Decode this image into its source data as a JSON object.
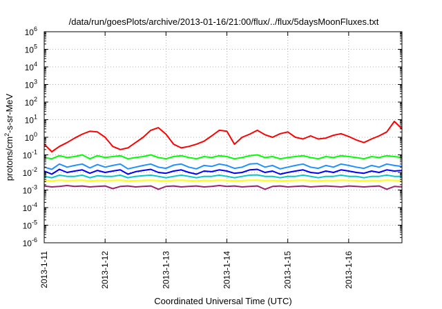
{
  "chart_data": {
    "type": "line",
    "title": "/data/run/goesPlots/archive/2013-01-16/21:00/flux/../flux/5daysMoonFluxes.txt",
    "xlabel": "Coordinated Universal Time (UTC)",
    "ylabel_parts": [
      "protons/cm",
      "2",
      "-s-sr-MeV"
    ],
    "y_scale": "log",
    "ylim": [
      1e-06,
      1000000.0
    ],
    "y_ticks": [
      {
        "base": "10",
        "exp": "-6",
        "value": 1e-06
      },
      {
        "base": "10",
        "exp": "-5",
        "value": 1e-05
      },
      {
        "base": "10",
        "exp": "-4",
        "value": 0.0001
      },
      {
        "base": "10",
        "exp": "-3",
        "value": 0.001
      },
      {
        "base": "10",
        "exp": "-2",
        "value": 0.01
      },
      {
        "base": "10",
        "exp": "-1",
        "value": 0.1
      },
      {
        "base": "10",
        "exp": "0",
        "value": 1
      },
      {
        "base": "10",
        "exp": "1",
        "value": 10
      },
      {
        "base": "10",
        "exp": "2",
        "value": 100
      },
      {
        "base": "10",
        "exp": "3",
        "value": 1000
      },
      {
        "base": "10",
        "exp": "4",
        "value": 10000
      },
      {
        "base": "10",
        "exp": "5",
        "value": 100000
      },
      {
        "base": "10",
        "exp": "6",
        "value": 1000000
      }
    ],
    "x_ticks": [
      "2013-1-11",
      "2013-1-12",
      "2013-1-13",
      "2013-1-14",
      "2013-1-15",
      "2013-1-16"
    ],
    "xlim": [
      "2013-1-11",
      "2013-1-16 21:00"
    ],
    "grid": true,
    "series": [
      {
        "color": "#ff0000",
        "x": [
          "2013-1-11 00:00",
          "2013-1-11 03:00",
          "2013-1-11 06:00",
          "2013-1-11 09:00",
          "2013-1-11 12:00",
          "2013-1-11 15:00",
          "2013-1-11 18:00",
          "2013-1-11 21:00",
          "2013-1-12 00:00",
          "2013-1-12 03:00",
          "2013-1-12 06:00",
          "2013-1-12 09:00",
          "2013-1-12 12:00",
          "2013-1-12 15:00",
          "2013-1-12 18:00",
          "2013-1-12 21:00",
          "2013-1-13 00:00",
          "2013-1-13 03:00",
          "2013-1-13 06:00",
          "2013-1-13 09:00",
          "2013-1-13 12:00",
          "2013-1-13 15:00",
          "2013-1-13 18:00",
          "2013-1-13 21:00",
          "2013-1-14 00:00",
          "2013-1-14 03:00",
          "2013-1-14 06:00",
          "2013-1-14 09:00",
          "2013-1-14 12:00",
          "2013-1-14 15:00",
          "2013-1-14 18:00",
          "2013-1-14 21:00",
          "2013-1-15 00:00",
          "2013-1-15 03:00",
          "2013-1-15 06:00",
          "2013-1-15 09:00",
          "2013-1-15 12:00",
          "2013-1-15 15:00",
          "2013-1-15 18:00",
          "2013-1-15 21:00",
          "2013-1-16 00:00",
          "2013-1-16 03:00",
          "2013-1-16 06:00",
          "2013-1-16 09:00",
          "2013-1-16 12:00",
          "2013-1-16 15:00",
          "2013-1-16 18:00",
          "2013-1-16 21:00"
        ],
        "values": [
          0.4,
          0.15,
          0.3,
          0.5,
          0.9,
          1.5,
          2.2,
          2.0,
          1.0,
          0.3,
          0.2,
          0.25,
          0.5,
          1.0,
          2.5,
          3.5,
          1.5,
          0.4,
          0.25,
          0.3,
          0.4,
          0.6,
          1.2,
          2.5,
          2.2,
          0.4,
          1.0,
          1.5,
          2.5,
          1.4,
          1.0,
          1.6,
          2.0,
          1.0,
          0.8,
          1.2,
          0.8,
          0.9,
          1.3,
          1.6,
          1.1,
          0.7,
          0.5,
          0.8,
          1.2,
          2.0,
          8.0,
          3.0
        ]
      },
      {
        "color": "#00ff00",
        "values": [
          0.07,
          0.06,
          0.09,
          0.07,
          0.08,
          0.1,
          0.06,
          0.09,
          0.07,
          0.08,
          0.09,
          0.06,
          0.07,
          0.08,
          0.1,
          0.07,
          0.06,
          0.08,
          0.09,
          0.07,
          0.06,
          0.08,
          0.07,
          0.09,
          0.08,
          0.06,
          0.07,
          0.09,
          0.1,
          0.07,
          0.08,
          0.06,
          0.07,
          0.08,
          0.09,
          0.07,
          0.06,
          0.08,
          0.07,
          0.09,
          0.08,
          0.07,
          0.06,
          0.08,
          0.07,
          0.09,
          0.08,
          0.07
        ]
      },
      {
        "color": "#1e90ff",
        "values": [
          0.02,
          0.015,
          0.03,
          0.02,
          0.025,
          0.03,
          0.018,
          0.028,
          0.02,
          0.025,
          0.03,
          0.016,
          0.02,
          0.025,
          0.03,
          0.02,
          0.017,
          0.026,
          0.03,
          0.02,
          0.016,
          0.025,
          0.022,
          0.03,
          0.025,
          0.017,
          0.02,
          0.03,
          0.032,
          0.02,
          0.025,
          0.016,
          0.02,
          0.025,
          0.03,
          0.02,
          0.017,
          0.025,
          0.02,
          0.03,
          0.025,
          0.02,
          0.017,
          0.025,
          0.02,
          0.03,
          0.025,
          0.022
        ]
      },
      {
        "color": "#0000ff",
        "values": [
          0.012,
          0.008,
          0.015,
          0.01,
          0.012,
          0.014,
          0.009,
          0.013,
          0.01,
          0.012,
          0.014,
          0.008,
          0.011,
          0.013,
          0.015,
          0.01,
          0.009,
          0.012,
          0.014,
          0.01,
          0.008,
          0.012,
          0.011,
          0.014,
          0.012,
          0.009,
          0.01,
          0.014,
          0.015,
          0.01,
          0.012,
          0.008,
          0.01,
          0.012,
          0.014,
          0.01,
          0.009,
          0.012,
          0.01,
          0.014,
          0.012,
          0.01,
          0.009,
          0.012,
          0.01,
          0.014,
          0.012,
          0.013
        ]
      },
      {
        "color": "#00c8c8",
        "values": [
          0.006,
          0.005,
          0.007,
          0.006,
          0.006,
          0.007,
          0.005,
          0.0065,
          0.006,
          0.006,
          0.007,
          0.005,
          0.006,
          0.0065,
          0.007,
          0.006,
          0.005,
          0.006,
          0.007,
          0.006,
          0.005,
          0.006,
          0.006,
          0.007,
          0.006,
          0.005,
          0.006,
          0.007,
          0.0072,
          0.006,
          0.006,
          0.005,
          0.006,
          0.006,
          0.007,
          0.006,
          0.005,
          0.006,
          0.006,
          0.007,
          0.006,
          0.006,
          0.005,
          0.006,
          0.006,
          0.007,
          0.006,
          0.006
        ]
      },
      {
        "color": "#ffff00",
        "values": [
          0.0035,
          0.0033,
          0.0036,
          0.0034,
          0.0035,
          0.0036,
          0.0033,
          0.0035,
          0.0034,
          0.0035,
          0.0036,
          0.0033,
          0.0034,
          0.0035,
          0.0036,
          0.0034,
          0.0033,
          0.0035,
          0.0036,
          0.0034,
          0.0033,
          0.0035,
          0.0034,
          0.0036,
          0.0035,
          0.0033,
          0.0034,
          0.0036,
          0.0036,
          0.0034,
          0.0035,
          0.0033,
          0.0034,
          0.0035,
          0.0036,
          0.0034,
          0.0033,
          0.0035,
          0.0034,
          0.0036,
          0.0035,
          0.0034,
          0.0033,
          0.0035,
          0.0034,
          0.0036,
          0.0035,
          0.0034
        ]
      },
      {
        "color": "#a0206a",
        "values": [
          0.0017,
          0.0015,
          0.0016,
          0.0018,
          0.0016,
          0.0017,
          0.0015,
          0.0016,
          0.0017,
          0.0012,
          0.0016,
          0.0017,
          0.0015,
          0.0016,
          0.0017,
          0.0011,
          0.0016,
          0.0017,
          0.0015,
          0.0016,
          0.0017,
          0.0015,
          0.0016,
          0.0018,
          0.0016,
          0.0017,
          0.0015,
          0.0016,
          0.0017,
          0.0011,
          0.0016,
          0.0017,
          0.0015,
          0.0016,
          0.0017,
          0.0015,
          0.0016,
          0.0017,
          0.0016,
          0.0015,
          0.0017,
          0.0016,
          0.0015,
          0.0016,
          0.0017,
          0.0011,
          0.0016,
          0.0015
        ]
      }
    ]
  }
}
